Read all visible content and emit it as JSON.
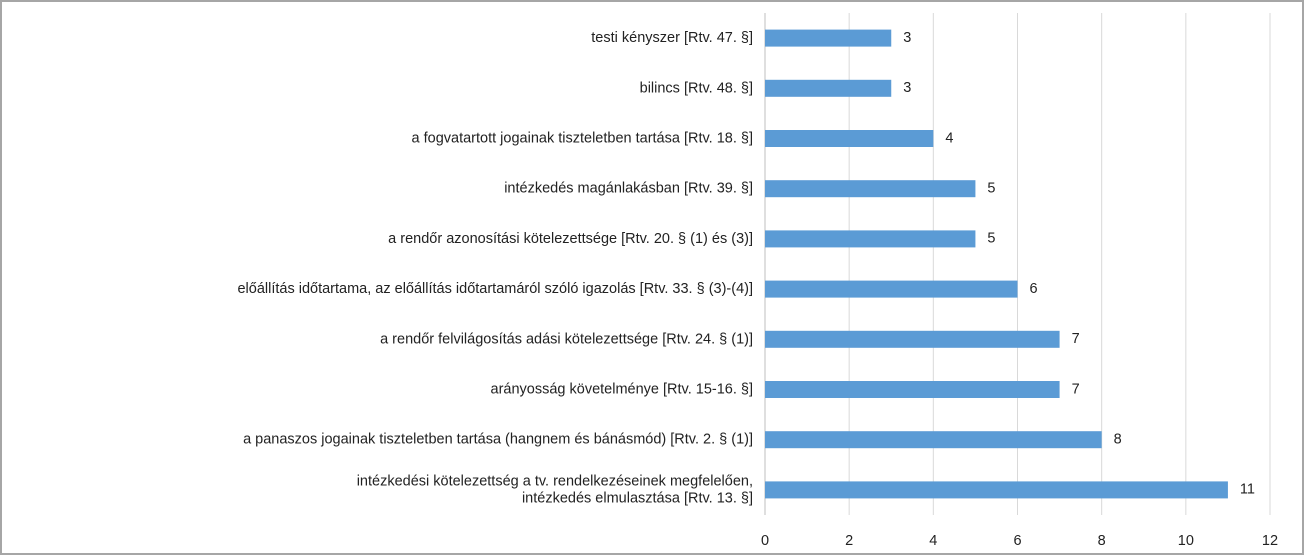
{
  "chart_data": {
    "type": "bar",
    "orientation": "horizontal",
    "categories": [
      "testi kényszer [Rtv. 47. §]",
      "bilincs [Rtv. 48. §]",
      "a fogvatartott jogainak tiszteletben tartása [Rtv. 18. §]",
      "intézkedés magánlakásban [Rtv. 39. §]",
      "a rendőr azonosítási kötelezettsége [Rtv. 20. § (1) és (3)]",
      "előállítás időtartama, az előállítás időtartamáról szóló igazolás [Rtv. 33. § (3)-(4)]",
      "a rendőr felvilágosítás adási kötelezettsége [Rtv. 24. § (1)]",
      "arányosság követelménye [Rtv. 15-16. §]",
      "a panaszos jogainak tiszteletben tartása (hangnem és bánásmód) [Rtv. 2. § (1)]",
      "intézkedési kötelezettség a tv. rendelkezéseinek megfelelően,\nintézkedés elmulasztása [Rtv. 13. §]"
    ],
    "values": [
      3,
      3,
      4,
      5,
      5,
      6,
      7,
      7,
      8,
      11
    ],
    "color": "#5b9bd5",
    "xlim": [
      0,
      12
    ],
    "xticks": [
      0,
      2,
      4,
      6,
      8,
      10,
      12
    ],
    "grid": true
  }
}
